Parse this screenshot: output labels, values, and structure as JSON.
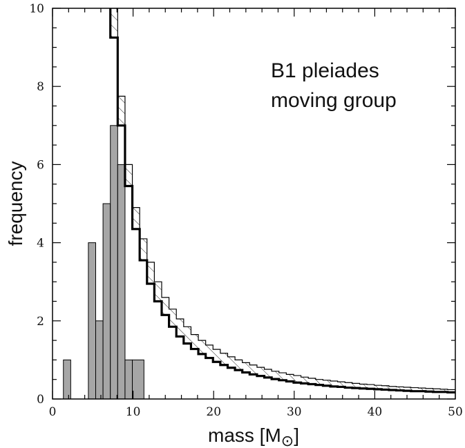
{
  "chart_data": {
    "type": "bar",
    "xlabel": "mass [M",
    "xlabel_sub": "⊙",
    "xlabel_close": "]",
    "ylabel": "frequency",
    "xlim": [
      0,
      50
    ],
    "ylim": [
      0,
      10
    ],
    "x_ticks": [
      0,
      10,
      20,
      30,
      40,
      50
    ],
    "y_ticks": [
      0,
      2,
      4,
      6,
      8,
      10
    ],
    "annotation": [
      "B1 pleiades",
      "moving group"
    ],
    "grid": false,
    "bin_width": 0.91,
    "observed": {
      "fill": "#a6a6a6",
      "bins": [
        {
          "x0": 1.35,
          "x1": 2.26,
          "count": 1
        },
        {
          "x0": 4.45,
          "x1": 5.36,
          "count": 4
        },
        {
          "x0": 5.36,
          "x1": 6.27,
          "count": 2
        },
        {
          "x0": 6.27,
          "x1": 7.18,
          "count": 5
        },
        {
          "x0": 7.18,
          "x1": 8.09,
          "count": 7
        },
        {
          "x0": 8.09,
          "x1": 9.0,
          "count": 6
        },
        {
          "x0": 9.0,
          "x1": 9.91,
          "count": 1
        },
        {
          "x0": 9.91,
          "x1": 11.35,
          "count": 1
        }
      ]
    },
    "model": {
      "start": 5.36,
      "step": 0.91,
      "lower": [
        12.0,
        11.0,
        9.25,
        7.0,
        5.45,
        4.35,
        3.55,
        2.95,
        2.5,
        2.15,
        1.85,
        1.6,
        1.42,
        1.28,
        1.15,
        1.05,
        0.95,
        0.87,
        0.8,
        0.74,
        0.68,
        0.63,
        0.59,
        0.55,
        0.51,
        0.48,
        0.45,
        0.42,
        0.4,
        0.38,
        0.36,
        0.34,
        0.32,
        0.31,
        0.29,
        0.28,
        0.27,
        0.26,
        0.25,
        0.24,
        0.23,
        0.22,
        0.21,
        0.2,
        0.2,
        0.19,
        0.18,
        0.18,
        0.17
      ],
      "upper": [
        12.8,
        11.8,
        10.0,
        7.75,
        6.0,
        4.9,
        4.1,
        3.5,
        3.0,
        2.6,
        2.3,
        2.05,
        1.85,
        1.65,
        1.5,
        1.38,
        1.27,
        1.17,
        1.08,
        1.0,
        0.93,
        0.87,
        0.81,
        0.76,
        0.71,
        0.67,
        0.63,
        0.6,
        0.56,
        0.53,
        0.5,
        0.48,
        0.46,
        0.44,
        0.42,
        0.4,
        0.38,
        0.37,
        0.35,
        0.34,
        0.32,
        0.31,
        0.3,
        0.29,
        0.28,
        0.27,
        0.26,
        0.25,
        0.24
      ]
    }
  }
}
